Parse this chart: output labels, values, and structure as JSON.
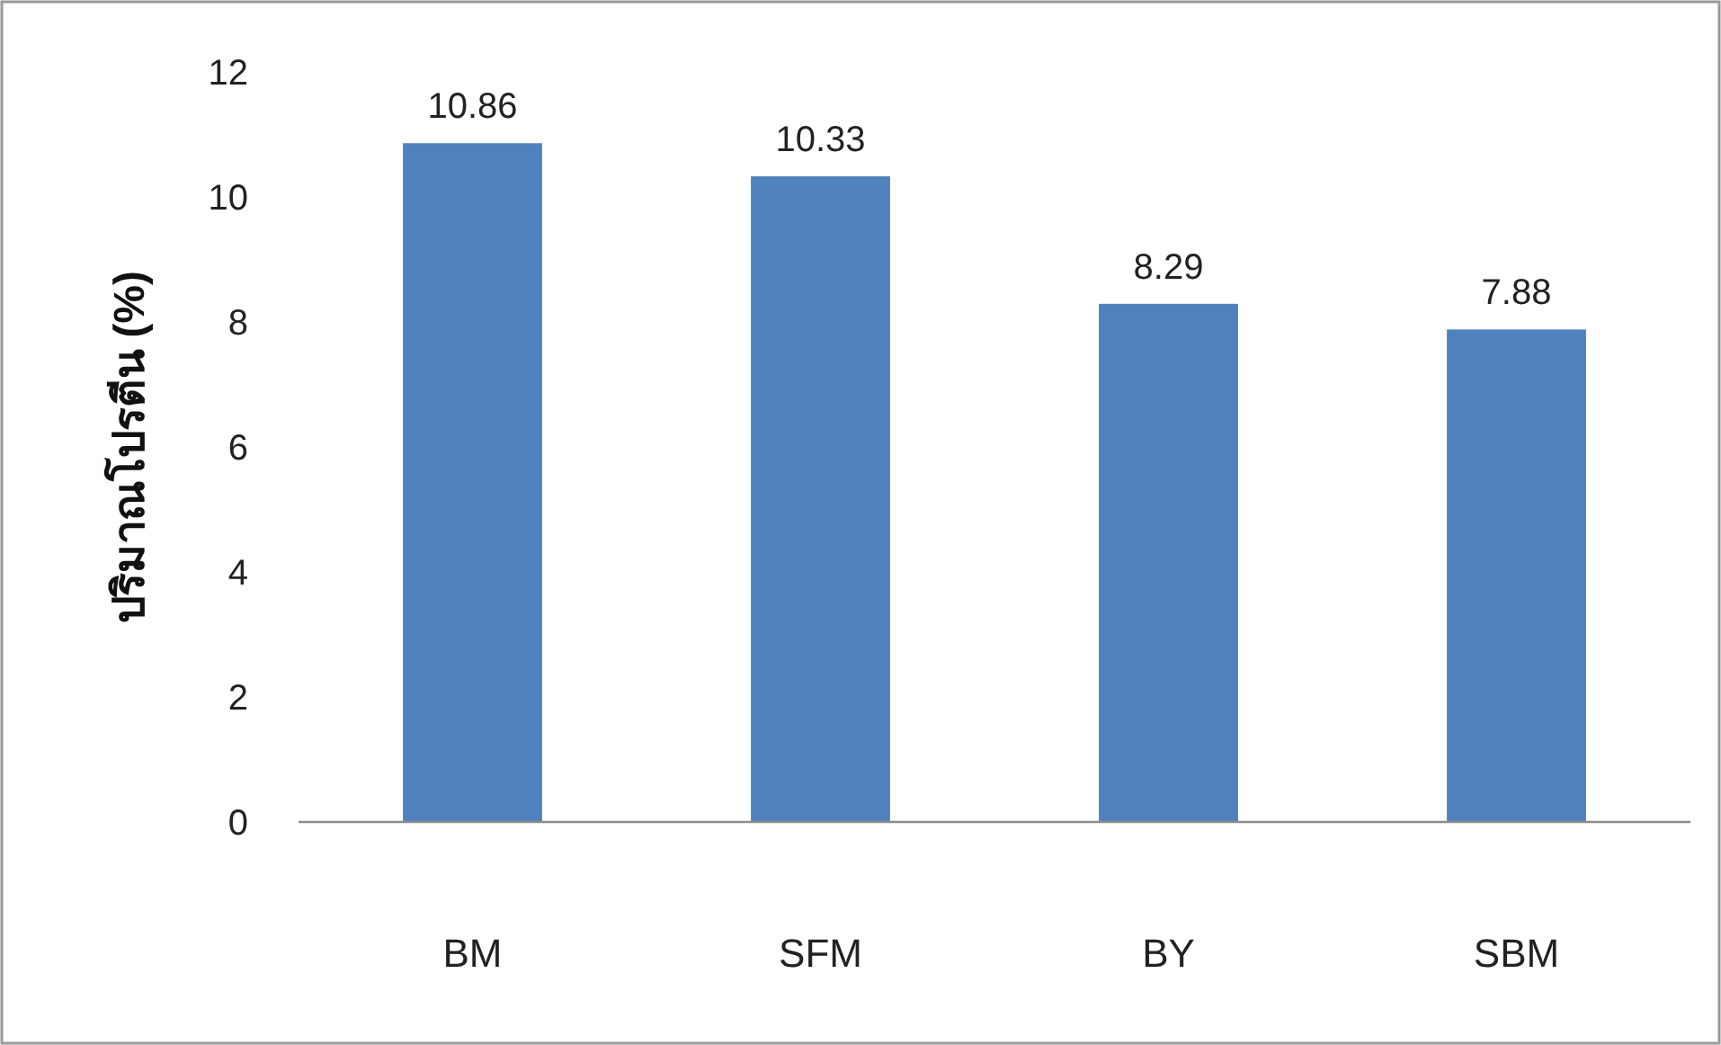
{
  "chart_data": {
    "type": "bar",
    "ylabel": "ปริมาณโปรตีน (%)",
    "categories": [
      "BM",
      "SFM",
      "BY",
      "SBM"
    ],
    "values": [
      10.86,
      10.33,
      8.29,
      7.88
    ],
    "color": "#4f81bd",
    "ylim": [
      0,
      12
    ],
    "yticks": [
      0,
      2,
      4,
      6,
      8,
      10,
      12
    ],
    "data_labels": true,
    "grid": false
  }
}
